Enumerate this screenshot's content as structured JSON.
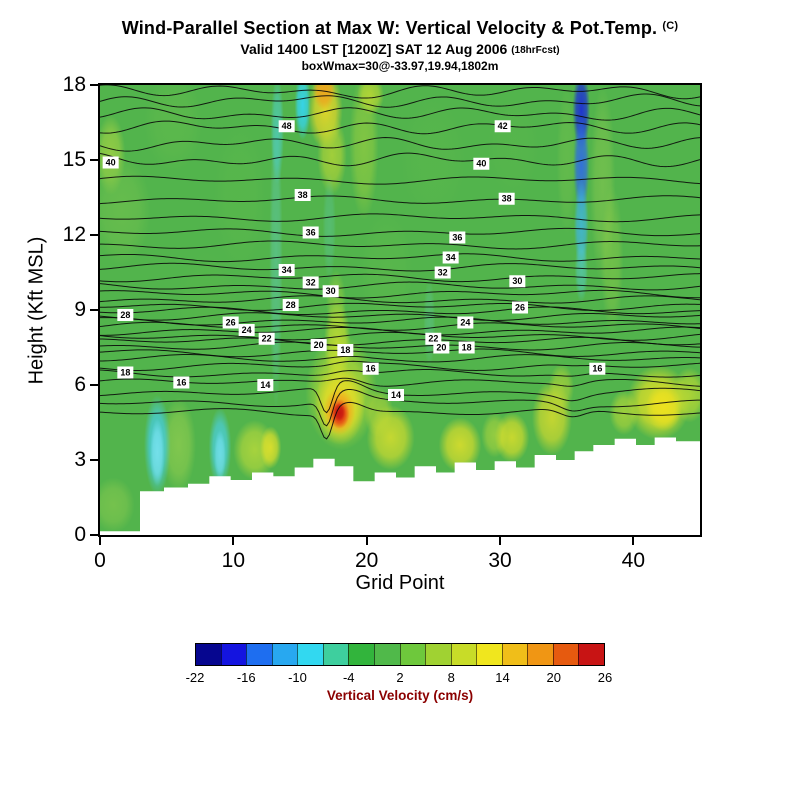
{
  "header": {
    "title": "Wind-Parallel Section at Max W: Vertical Velocity & Pot.Temp.",
    "title_units": "(C)",
    "subtitle": "Valid 1400 LST [1200Z] SAT 12 Aug 2006",
    "subtitle_suffix": "(18hrFcst)",
    "info_line": "boxWmax=30@-33.97,19.94,1802m"
  },
  "chart_data": {
    "type": "heatmap",
    "title": "Wind-Parallel Section at Max W: Vertical Velocity & Pot.Temp. (C)",
    "subtitle": "Valid 1400 LST [1200Z] SAT 12 Aug 2006 (18hrFcst)",
    "annotation": "boxWmax=30@-33.97,19.94,1802m",
    "xlabel": "Grid Point",
    "ylabel": "Height (Kft MSL)",
    "xlim": [
      0,
      45
    ],
    "ylim": [
      0,
      18
    ],
    "x_ticks": [
      0,
      10,
      20,
      30,
      40
    ],
    "y_ticks": [
      0,
      3,
      6,
      9,
      12,
      15,
      18
    ],
    "fill_variable": "Vertical Velocity (cm/s)",
    "line_variable": "Potential Temperature (C)",
    "background_fill_cm_s": 2,
    "base_fill_color": "#52b44c",
    "colorbar": {
      "label": "Vertical Velocity (cm/s)",
      "ticks": [
        -22,
        -16,
        -10,
        -4,
        2,
        8,
        14,
        20,
        26
      ],
      "cell_width_cm_s": 3,
      "colors": [
        "#06068f",
        "#1414e0",
        "#1e6ef0",
        "#28a8f0",
        "#32d8f0",
        "#3ecf9e",
        "#32b43c",
        "#50b94a",
        "#6ec83c",
        "#a0d232",
        "#c8dc28",
        "#f0e61e",
        "#f0be19",
        "#f09614",
        "#e65a0f",
        "#c81414"
      ]
    },
    "key_features": [
      {
        "feature": "max updraft core",
        "grid": 18,
        "height_kft": 5,
        "w_cm_s": 26
      },
      {
        "feature": "upper-level downdraft streak",
        "grid": 36,
        "height_kft_range": [
          10,
          18
        ],
        "w_cm_s": -22
      },
      {
        "feature": "upper-level downdraft streak",
        "grid": 15,
        "height_kft_range": [
          16,
          18
        ],
        "w_cm_s": -12
      },
      {
        "feature": "low-level downdraft streak",
        "grid": 4.5,
        "height_kft_range": [
          2,
          5.5
        ],
        "w_cm_s": -12
      },
      {
        "feature": "low-level downdraft streak",
        "grid": 9,
        "height_kft_range": [
          2,
          5
        ],
        "w_cm_s": -10
      },
      {
        "feature": "low-level updraft band",
        "grid_range": [
          40,
          44
        ],
        "height_kft_range": [
          4,
          6.5
        ],
        "w_cm_s": 12
      },
      {
        "feature": "background field",
        "w_cm_s": 2
      }
    ],
    "pot_temp_contours": [
      [
        12,
        4.9
      ],
      [
        13,
        5.3
      ],
      [
        14,
        5.7
      ],
      [
        15,
        6.1
      ],
      [
        16,
        6.45
      ],
      [
        17,
        6.75
      ],
      [
        18,
        7.05
      ],
      [
        19,
        7.3
      ],
      [
        20,
        7.55
      ],
      [
        21,
        7.75
      ],
      [
        22,
        7.95
      ],
      [
        23,
        8.15
      ],
      [
        24,
        8.35
      ],
      [
        25,
        8.55
      ],
      [
        26,
        8.75
      ],
      [
        27,
        8.95
      ],
      [
        28,
        9.15
      ],
      [
        29,
        9.4
      ],
      [
        30,
        9.65
      ],
      [
        31,
        9.95
      ],
      [
        32,
        10.3
      ],
      [
        33,
        10.7
      ],
      [
        34,
        11.1
      ],
      [
        35,
        11.6
      ],
      [
        36,
        12.1
      ],
      [
        37,
        12.7
      ],
      [
        38,
        13.4
      ],
      [
        39,
        14.2
      ],
      [
        40,
        15.0
      ],
      [
        41,
        15.65
      ],
      [
        42,
        16.3
      ],
      [
        43,
        16.85
      ],
      [
        44,
        17.35
      ],
      [
        45,
        17.75
      ]
    ],
    "contour_labels": [
      [
        40,
        0.8,
        14.9
      ],
      [
        48,
        14.0,
        16.35
      ],
      [
        42,
        30.2,
        16.35
      ],
      [
        40,
        28.6,
        14.85
      ],
      [
        38,
        15.2,
        13.6
      ],
      [
        38,
        30.5,
        13.45
      ],
      [
        36,
        15.8,
        12.1
      ],
      [
        36,
        26.8,
        11.9
      ],
      [
        34,
        14.0,
        10.6
      ],
      [
        34,
        26.3,
        11.1
      ],
      [
        32,
        15.8,
        10.1
      ],
      [
        32,
        25.7,
        10.5
      ],
      [
        30,
        17.3,
        9.75
      ],
      [
        30,
        31.3,
        10.15
      ],
      [
        28,
        14.3,
        9.2
      ],
      [
        28,
        1.9,
        8.8
      ],
      [
        26,
        9.8,
        8.5
      ],
      [
        26,
        31.5,
        9.1
      ],
      [
        24,
        11.0,
        8.2
      ],
      [
        24,
        27.4,
        8.5
      ],
      [
        22,
        12.5,
        7.85
      ],
      [
        22,
        25.0,
        7.85
      ],
      [
        20,
        16.4,
        7.6
      ],
      [
        20,
        25.6,
        7.5
      ],
      [
        18,
        18.4,
        7.4
      ],
      [
        18,
        27.5,
        7.5
      ],
      [
        18,
        1.9,
        6.5
      ],
      [
        16,
        20.3,
        6.65
      ],
      [
        16,
        6.1,
        6.1
      ],
      [
        16,
        37.3,
        6.65
      ],
      [
        14,
        12.4,
        6.0
      ],
      [
        14,
        22.2,
        5.6
      ]
    ],
    "terrain_steps_kft": [
      [
        0,
        0.15
      ],
      [
        3.0,
        1.75
      ],
      [
        4.8,
        1.9
      ],
      [
        6.6,
        2.05
      ],
      [
        8.2,
        2.35
      ],
      [
        9.8,
        2.2
      ],
      [
        11.4,
        2.5
      ],
      [
        13.0,
        2.35
      ],
      [
        14.6,
        2.7
      ],
      [
        16.0,
        3.05
      ],
      [
        17.6,
        2.75
      ],
      [
        19.0,
        2.15
      ],
      [
        20.6,
        2.5
      ],
      [
        22.2,
        2.3
      ],
      [
        23.6,
        2.75
      ],
      [
        25.2,
        2.5
      ],
      [
        26.6,
        2.9
      ],
      [
        28.2,
        2.6
      ],
      [
        29.6,
        2.95
      ],
      [
        31.2,
        2.7
      ],
      [
        32.6,
        3.2
      ],
      [
        34.2,
        3.0
      ],
      [
        35.6,
        3.35
      ],
      [
        37.0,
        3.6
      ],
      [
        38.6,
        3.85
      ],
      [
        40.2,
        3.6
      ],
      [
        41.6,
        3.9
      ],
      [
        43.2,
        3.75
      ]
    ],
    "w_field_blobs": [
      {
        "g": 0.8,
        "k": 15.2,
        "rx": 1.1,
        "ry": 1.6,
        "w": 5,
        "c": "#a6d343",
        "a": 0.75
      },
      {
        "g": 1.6,
        "k": 13.0,
        "rx": 2.2,
        "ry": 2.2,
        "w": 4,
        "c": "#76c34e",
        "a": 0.55
      },
      {
        "g": 5.5,
        "k": 16.5,
        "rx": 2.2,
        "ry": 2.0,
        "w": 3,
        "c": "#66bd4b",
        "a": 0.45
      },
      {
        "g": 10.5,
        "k": 13.5,
        "rx": 2.0,
        "ry": 3.0,
        "w": 3,
        "c": "#5fba4a",
        "a": 0.35
      },
      {
        "g": 21.5,
        "k": 10.5,
        "rx": 2.0,
        "ry": 2.5,
        "w": 3,
        "c": "#63bc4b",
        "a": 0.35
      },
      {
        "g": 25.0,
        "k": 15.0,
        "rx": 2.5,
        "ry": 2.5,
        "w": 3,
        "c": "#60ba4a",
        "a": 0.3
      },
      {
        "g": 31.0,
        "k": 15.5,
        "rx": 2.0,
        "ry": 2.0,
        "w": 3,
        "c": "#5eb94a",
        "a": 0.3
      },
      {
        "g": 33.0,
        "k": 8.0,
        "rx": 2.5,
        "ry": 2.0,
        "w": 3,
        "c": "#60ba4a",
        "a": 0.3
      },
      {
        "g": 8.0,
        "k": 9.0,
        "rx": 2.5,
        "ry": 2.5,
        "w": 3,
        "c": "#5cb849",
        "a": 0.3
      },
      {
        "g": 1.0,
        "k": 1.2,
        "rx": 1.6,
        "ry": 1.1,
        "w": 5,
        "c": "#8ccb4e",
        "a": 0.6
      },
      {
        "g": 5.9,
        "k": 3.6,
        "rx": 1.3,
        "ry": 1.9,
        "w": 6,
        "c": "#8ccb4e",
        "a": 0.8
      },
      {
        "g": 4.3,
        "k": 3.6,
        "rx": 1.0,
        "ry": 2.0,
        "w": -8,
        "c": "#47cde0",
        "a": 0.95
      },
      {
        "g": 4.3,
        "k": 3.3,
        "rx": 0.55,
        "ry": 1.35,
        "w": -12,
        "c": "#79e2ec",
        "a": 0.9
      },
      {
        "g": 9.0,
        "k": 3.5,
        "rx": 0.85,
        "ry": 1.6,
        "w": -7,
        "c": "#4bcfe0",
        "a": 0.9
      },
      {
        "g": 9.0,
        "k": 3.2,
        "rx": 0.45,
        "ry": 1.0,
        "w": -10,
        "c": "#76e0ea",
        "a": 0.8
      },
      {
        "g": 11.6,
        "k": 3.4,
        "rx": 1.6,
        "ry": 1.2,
        "w": 7,
        "c": "#b5d83b",
        "a": 0.85
      },
      {
        "g": 12.8,
        "k": 3.5,
        "rx": 0.8,
        "ry": 0.85,
        "w": 9,
        "c": "#e6e229",
        "a": 0.85
      },
      {
        "g": 13.2,
        "k": 11.0,
        "rx": 0.5,
        "ry": 6.0,
        "w": -3,
        "c": "#62cfc0",
        "a": 0.45
      },
      {
        "g": 13.3,
        "k": 16.2,
        "rx": 0.5,
        "ry": 2.2,
        "w": -6,
        "c": "#4ed2da",
        "a": 0.6
      },
      {
        "g": 15.2,
        "k": 17.2,
        "rx": 0.6,
        "ry": 1.4,
        "w": -12,
        "c": "#35d5ef",
        "a": 0.95
      },
      {
        "g": 16.9,
        "k": 17.0,
        "rx": 1.3,
        "ry": 1.6,
        "w": 10,
        "c": "#ebd827",
        "a": 0.9
      },
      {
        "g": 16.8,
        "k": 17.8,
        "rx": 0.85,
        "ry": 0.8,
        "w": 14,
        "c": "#f0a21c",
        "a": 0.9
      },
      {
        "g": 17.4,
        "k": 15.2,
        "rx": 1.1,
        "ry": 1.6,
        "w": 6,
        "c": "#c2d933",
        "a": 0.7
      },
      {
        "g": 19.8,
        "k": 15.6,
        "rx": 1.1,
        "ry": 3.0,
        "w": 5,
        "c": "#a7d43c",
        "a": 0.55
      },
      {
        "g": 20.3,
        "k": 17.6,
        "rx": 1.0,
        "ry": 0.8,
        "w": 8,
        "c": "#cede2f",
        "a": 0.7
      },
      {
        "g": 17.2,
        "k": 12.3,
        "rx": 0.5,
        "ry": 2.2,
        "w": -3,
        "c": "#5fcfc4",
        "a": 0.3
      },
      {
        "g": 24.7,
        "k": 8.5,
        "rx": 0.45,
        "ry": 1.8,
        "w": -2,
        "c": "#64cec2",
        "a": 0.3
      },
      {
        "g": 18.1,
        "k": 5.7,
        "rx": 2.7,
        "ry": 2.3,
        "w": 8,
        "c": "#b7d934",
        "a": 0.9
      },
      {
        "g": 18.0,
        "k": 5.2,
        "rx": 1.9,
        "ry": 1.6,
        "w": 11,
        "c": "#ebde25",
        "a": 0.95
      },
      {
        "g": 17.8,
        "k": 7.7,
        "rx": 1.0,
        "ry": 1.7,
        "w": 8,
        "c": "#cfe02e",
        "a": 0.8
      },
      {
        "g": 17.7,
        "k": 9.3,
        "rx": 0.75,
        "ry": 1.3,
        "w": 5,
        "c": "#a7d43c",
        "a": 0.5
      },
      {
        "g": 17.95,
        "k": 4.95,
        "rx": 1.2,
        "ry": 0.95,
        "w": 17,
        "c": "#f2a01c",
        "a": 0.95
      },
      {
        "g": 17.95,
        "k": 4.85,
        "rx": 0.75,
        "ry": 0.6,
        "w": 23,
        "c": "#e23112",
        "a": 0.95
      },
      {
        "g": 17.95,
        "k": 4.9,
        "rx": 0.45,
        "ry": 0.38,
        "w": 26,
        "c": "#c31410",
        "a": 0.95
      },
      {
        "g": 21.8,
        "k": 3.9,
        "rx": 1.8,
        "ry": 1.3,
        "w": 9,
        "c": "#d8de2d",
        "a": 0.85
      },
      {
        "g": 20.9,
        "k": 4.9,
        "rx": 1.1,
        "ry": 1.0,
        "w": 7,
        "c": "#c2da34",
        "a": 0.6
      },
      {
        "g": 27.0,
        "k": 3.6,
        "rx": 1.6,
        "ry": 1.1,
        "w": 10,
        "c": "#e2e02a",
        "a": 0.85
      },
      {
        "g": 29.6,
        "k": 4.0,
        "rx": 1.0,
        "ry": 0.9,
        "w": 7,
        "c": "#b0d63c",
        "a": 0.7
      },
      {
        "g": 30.9,
        "k": 3.9,
        "rx": 1.3,
        "ry": 1.0,
        "w": 9,
        "c": "#e4e128",
        "a": 0.8
      },
      {
        "g": 33.9,
        "k": 4.7,
        "rx": 1.5,
        "ry": 1.5,
        "w": 9,
        "c": "#e0de2b",
        "a": 0.8
      },
      {
        "g": 34.6,
        "k": 5.9,
        "rx": 0.95,
        "ry": 0.95,
        "w": 7,
        "c": "#c2da34",
        "a": 0.6
      },
      {
        "g": 35.0,
        "k": 15.0,
        "rx": 0.75,
        "ry": 3.0,
        "w": 3,
        "c": "#7cc44d",
        "a": 0.4
      },
      {
        "g": 36.1,
        "k": 17.0,
        "rx": 0.65,
        "ry": 1.6,
        "w": -21,
        "c": "#1c2ed6",
        "a": 0.95
      },
      {
        "g": 36.1,
        "k": 14.8,
        "rx": 0.6,
        "ry": 2.0,
        "w": -17,
        "c": "#2f6ae8",
        "a": 0.9
      },
      {
        "g": 36.1,
        "k": 12.4,
        "rx": 0.55,
        "ry": 1.8,
        "w": -11,
        "c": "#3fb5e8",
        "a": 0.8
      },
      {
        "g": 36.1,
        "k": 10.6,
        "rx": 0.5,
        "ry": 1.3,
        "w": -6,
        "c": "#55cfd8",
        "a": 0.55
      },
      {
        "g": 37.7,
        "k": 14.0,
        "rx": 0.95,
        "ry": 4.0,
        "w": 4,
        "c": "#8fca4f",
        "a": 0.5
      },
      {
        "g": 38.4,
        "k": 11.0,
        "rx": 0.85,
        "ry": 3.0,
        "w": 4,
        "c": "#9cd047",
        "a": 0.4
      },
      {
        "g": 39.3,
        "k": 4.9,
        "rx": 1.1,
        "ry": 0.9,
        "w": 7,
        "c": "#bcd936",
        "a": 0.7
      },
      {
        "g": 41.9,
        "k": 5.3,
        "rx": 2.4,
        "ry": 1.5,
        "w": 10,
        "c": "#e5e126",
        "a": 0.9
      },
      {
        "g": 42.3,
        "k": 5.1,
        "rx": 1.35,
        "ry": 0.95,
        "w": 12,
        "c": "#f0e21e",
        "a": 0.9
      },
      {
        "g": 44.2,
        "k": 5.6,
        "rx": 1.3,
        "ry": 1.1,
        "w": 8,
        "c": "#cfe02e",
        "a": 0.7
      }
    ]
  }
}
